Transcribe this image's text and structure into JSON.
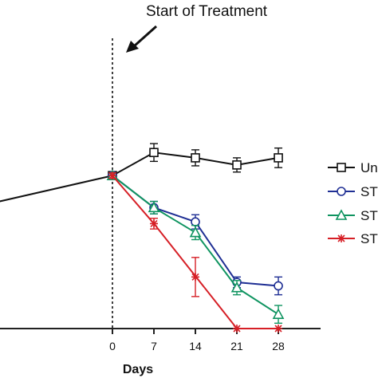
{
  "chart_data": {
    "type": "line",
    "title": "",
    "xlabel": "Days",
    "ylabel": "",
    "x_ticks": [
      "0",
      "7",
      "14",
      "21",
      "28"
    ],
    "annotation": {
      "text": "Start of Treatment",
      "at_x": 0,
      "vline_style": "dashed"
    },
    "series": [
      {
        "name": "Un",
        "color": "#111111",
        "marker": "square",
        "x": [
          -21,
          0,
          7,
          14,
          21,
          28
        ],
        "y": [
          7.0,
          8.6,
          9.9,
          9.6,
          9.2,
          9.6
        ],
        "err": [
          0,
          0.15,
          0.5,
          0.45,
          0.4,
          0.55
        ]
      },
      {
        "name": "ST",
        "color": "#1f2f94",
        "marker": "circle",
        "x": [
          0,
          7,
          14,
          21,
          28
        ],
        "y": [
          8.6,
          6.8,
          6.0,
          2.6,
          2.4
        ],
        "err": [
          0.15,
          0.35,
          0.4,
          0.3,
          0.5
        ]
      },
      {
        "name": "ST",
        "color": "#0f9460",
        "marker": "triangle",
        "x": [
          0,
          7,
          14,
          21,
          28
        ],
        "y": [
          8.6,
          6.8,
          5.4,
          2.3,
          0.8
        ],
        "err": [
          0.15,
          0.35,
          0.4,
          0.4,
          0.5
        ]
      },
      {
        "name": "ST",
        "color": "#d61f26",
        "marker": "star",
        "x": [
          0,
          7,
          21,
          28
        ],
        "y": [
          8.6,
          5.9,
          0.0,
          0.0
        ],
        "err": [
          0.15,
          0.3,
          0,
          0
        ]
      },
      {
        "name": "",
        "color": "#d61f26",
        "marker": "star",
        "x": [
          14
        ],
        "y": [
          2.9
        ],
        "err": [
          1.1
        ],
        "points_only": true
      }
    ],
    "legend": {
      "position": "right",
      "entries": [
        "Un",
        "ST",
        "ST",
        "ST"
      ]
    },
    "xlim": [
      -36,
      32
    ],
    "ylim": [
      0,
      11.5
    ],
    "grid": false
  }
}
